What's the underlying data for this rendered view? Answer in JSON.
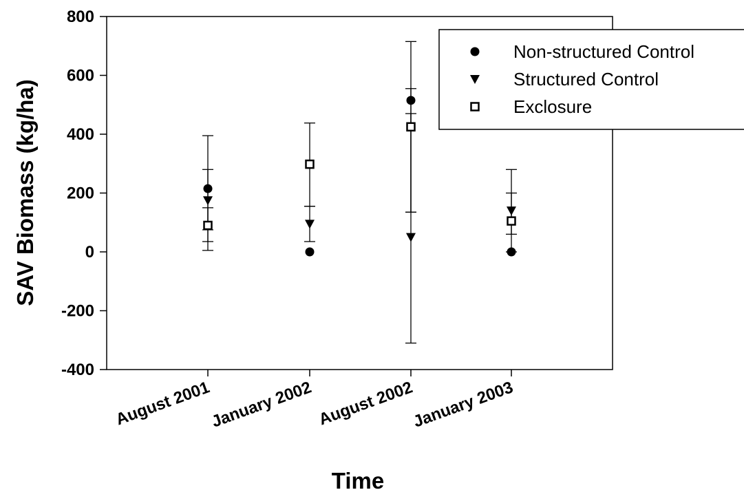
{
  "chart_data": {
    "type": "scatter",
    "categories": [
      "August 2001",
      "January 2002",
      "August 2002",
      "January 2003"
    ],
    "xlabel": "Time",
    "ylabel": "SAV Biomass (kg/ha)",
    "ylim": [
      -400,
      800
    ],
    "yticks": [
      -400,
      -200,
      0,
      200,
      400,
      600,
      800
    ],
    "grid": false,
    "legend_position": "top-right",
    "series": [
      {
        "name": "Non-structured Control",
        "marker": "circle",
        "color": "#000000",
        "values": [
          215,
          0,
          515,
          0
        ],
        "err_low": [
          5,
          null,
          135,
          null
        ],
        "err_high": [
          395,
          null,
          715,
          null
        ]
      },
      {
        "name": "Structured Control",
        "marker": "triangle-down",
        "color": "#000000",
        "values": [
          175,
          95,
          50,
          140
        ],
        "err_low": [
          75,
          35,
          -310,
          60
        ],
        "err_high": [
          280,
          155,
          555,
          280
        ]
      },
      {
        "name": "Exclosure",
        "marker": "square-open",
        "color": "#000000",
        "values": [
          90,
          298,
          425,
          105
        ],
        "err_low": [
          35,
          155,
          135,
          0
        ],
        "err_high": [
          150,
          438,
          470,
          200
        ]
      }
    ]
  }
}
